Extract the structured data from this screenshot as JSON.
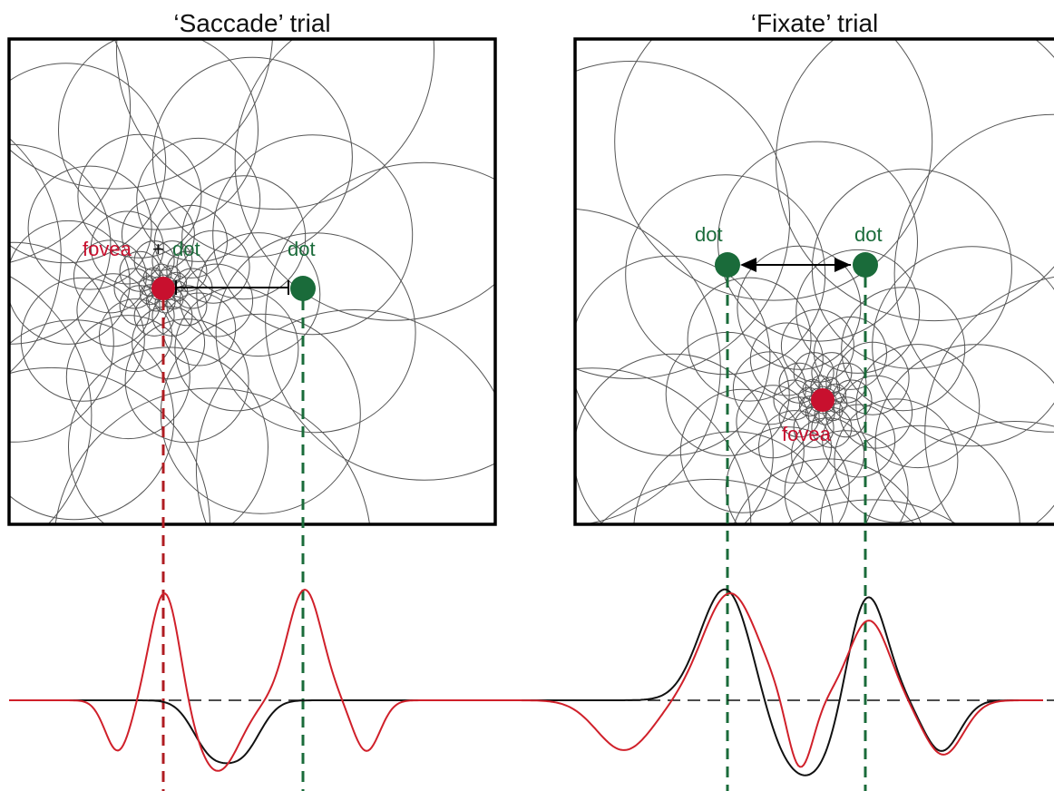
{
  "panels": {
    "saccade": {
      "title": "‘Saccade’ trial",
      "fovea_label": "fovea",
      "plus_label": "+",
      "dot_label_at_fovea": "dot",
      "dot_label": "dot"
    },
    "fixate": {
      "title": "‘Fixate’ trial",
      "dot_label_left": "dot",
      "dot_label_right": "dot",
      "fovea_label": "fovea"
    }
  },
  "colors": {
    "fovea": "#c8102e",
    "dot": "#1a6b3a",
    "response_black": "#111111",
    "response_red": "#d0202a",
    "receptive_field": "#555555",
    "frame": "#000000"
  },
  "icons": [
    "fovea-marker-icon",
    "dot-marker-icon",
    "double-arrow-icon",
    "t-bar-arrow-icon"
  ]
}
